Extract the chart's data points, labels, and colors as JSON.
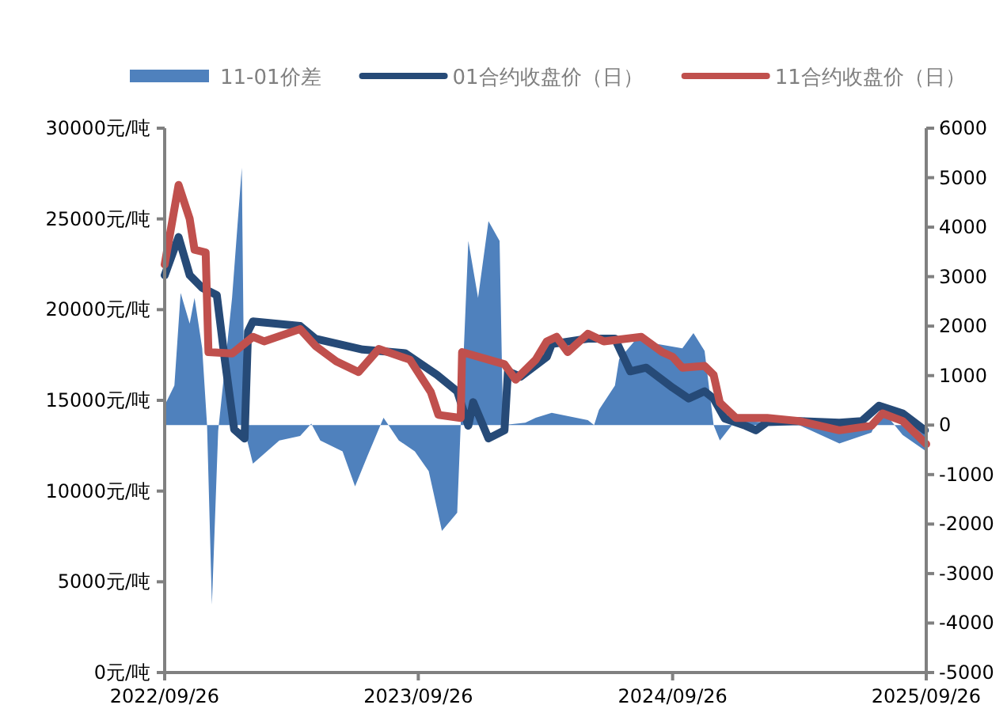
{
  "chart_data": {
    "type": "line",
    "legend": "top",
    "grid": false,
    "line_style": "solid",
    "xlim": [
      "2022-09-26",
      "2025-09-26"
    ],
    "xticks": [
      {
        "value": "2022-09-26",
        "label": "2022/09/26"
      },
      {
        "value": "2023-09-26",
        "label": "2023/09/26"
      },
      {
        "value": "2024-09-26",
        "label": "2024/09/26"
      },
      {
        "value": "2025-09-26",
        "label": "2025/09/26"
      }
    ],
    "ylim": [
      0,
      30000
    ],
    "yticks": [
      {
        "value": 0,
        "label": "0元/吨"
      },
      {
        "value": 5000,
        "label": "5000元/吨"
      },
      {
        "value": 10000,
        "label": "10000元/吨"
      },
      {
        "value": 15000,
        "label": "15000元/吨"
      },
      {
        "value": 20000,
        "label": "20000元/吨"
      },
      {
        "value": 25000,
        "label": "25000元/吨"
      },
      {
        "value": 30000,
        "label": "30000元/吨"
      }
    ],
    "y2lim": [
      -5000,
      6000
    ],
    "y2ticks": [
      -5000,
      -4000,
      -3000,
      -2000,
      -1000,
      0,
      1000,
      2000,
      3000,
      4000,
      5000,
      6000
    ],
    "series": [
      {
        "name": "11-01价差",
        "type": "area",
        "axis": "y2",
        "color": "#4f81bd",
        "x": [
          "2022-09-26",
          "2022-10-10",
          "2022-10-19",
          "2022-11-01",
          "2022-11-08",
          "2022-11-19",
          "2022-11-26",
          "2022-12-03",
          "2022-12-12",
          "2023-01-01",
          "2023-01-15",
          "2023-01-19",
          "2023-01-31",
          "2023-03-10",
          "2023-04-09",
          "2023-04-25",
          "2023-05-08",
          "2023-06-09",
          "2023-06-27",
          "2023-07-15",
          "2023-08-07",
          "2023-08-29",
          "2023-09-21",
          "2023-10-11",
          "2023-10-30",
          "2023-11-21",
          "2023-11-26",
          "2023-12-07",
          "2023-12-21",
          "2024-01-05",
          "2024-01-21",
          "2024-01-26",
          "2024-02-27",
          "2024-03-13",
          "2024-04-05",
          "2024-05-27",
          "2024-06-05",
          "2024-06-12",
          "2024-07-05",
          "2024-07-11",
          "2024-08-12",
          "2024-09-04",
          "2024-10-10",
          "2024-10-26",
          "2024-11-11",
          "2024-11-24",
          "2024-12-03",
          "2024-12-26",
          "2025-02-09",
          "2025-03-27",
          "2025-05-24",
          "2025-07-09",
          "2025-07-25",
          "2025-08-23",
          "2025-09-26"
        ],
        "values": [
          400,
          800,
          2670,
          2050,
          2570,
          1550,
          0,
          -3630,
          -120,
          2570,
          5200,
          -100,
          -780,
          -310,
          -220,
          30,
          -310,
          -530,
          -1240,
          -620,
          150,
          -310,
          -530,
          -930,
          -2140,
          -1770,
          0,
          3720,
          2570,
          4120,
          3720,
          0,
          50,
          150,
          250,
          100,
          0,
          310,
          800,
          1330,
          1860,
          1640,
          1550,
          1860,
          1500,
          0,
          -310,
          100,
          50,
          0,
          -370,
          -150,
          300,
          -200,
          -530
        ]
      },
      {
        "name": "01合约收盘价（日）",
        "axis": "y",
        "color": "#264a77",
        "x": [
          "2022-09-26",
          "2022-10-16",
          "2022-11-01",
          "2022-11-19",
          "2022-12-10",
          "2022-12-21",
          "2023-01-04",
          "2023-01-19",
          "2023-01-24",
          "2023-01-31",
          "2023-04-09",
          "2023-05-01",
          "2023-07-08",
          "2023-09-07",
          "2023-10-23",
          "2023-11-21",
          "2023-12-07",
          "2023-12-14",
          "2024-01-05",
          "2024-01-28",
          "2024-02-02",
          "2024-02-20",
          "2024-03-29",
          "2024-04-05",
          "2024-05-27",
          "2024-07-05",
          "2024-07-27",
          "2024-08-19",
          "2024-09-26",
          "2024-10-19",
          "2024-11-11",
          "2024-11-24",
          "2024-12-10",
          "2025-01-09",
          "2025-01-24",
          "2025-02-09",
          "2025-03-27",
          "2025-05-24",
          "2025-06-25",
          "2025-07-20",
          "2025-08-23",
          "2025-09-24"
        ],
        "values": [
          21890,
          24000,
          21900,
          21200,
          20800,
          17400,
          13400,
          12900,
          18800,
          19350,
          19100,
          18400,
          17800,
          17600,
          16400,
          15500,
          13600,
          14900,
          12900,
          13350,
          16600,
          16300,
          17400,
          18100,
          18400,
          18400,
          16600,
          16800,
          15700,
          15100,
          15500,
          15100,
          14000,
          13600,
          13350,
          13800,
          13860,
          13770,
          13860,
          14700,
          14280,
          13350
        ]
      },
      {
        "name": "11合约收盘价（日）",
        "axis": "y",
        "color": "#c0504d",
        "x": [
          "2022-09-26",
          "2022-10-16",
          "2022-11-01",
          "2022-11-08",
          "2022-11-24",
          "2022-11-28",
          "2023-01-01",
          "2023-01-31",
          "2023-02-16",
          "2023-04-09",
          "2023-05-01",
          "2023-05-31",
          "2023-07-02",
          "2023-07-31",
          "2023-09-14",
          "2023-10-14",
          "2023-10-25",
          "2023-11-26",
          "2023-11-28",
          "2024-01-28",
          "2024-02-13",
          "2024-03-13",
          "2024-03-29",
          "2024-04-12",
          "2024-04-28",
          "2024-05-27",
          "2024-06-19",
          "2024-08-12",
          "2024-09-11",
          "2024-09-26",
          "2024-10-10",
          "2024-11-11",
          "2024-11-24",
          "2024-12-03",
          "2024-12-26",
          "2025-02-09",
          "2025-03-27",
          "2025-05-24",
          "2025-07-09",
          "2025-07-25",
          "2025-08-23",
          "2025-09-26"
        ],
        "values": [
          22480,
          26870,
          25000,
          23300,
          23150,
          17660,
          17580,
          18500,
          18250,
          18930,
          18000,
          17150,
          16560,
          17830,
          17240,
          15460,
          14200,
          14030,
          17660,
          16990,
          16140,
          17240,
          18250,
          18500,
          17660,
          18670,
          18250,
          18500,
          17660,
          17400,
          16800,
          16900,
          16400,
          14870,
          14030,
          14030,
          13860,
          13350,
          13600,
          14280,
          13860,
          12590
        ]
      }
    ]
  }
}
